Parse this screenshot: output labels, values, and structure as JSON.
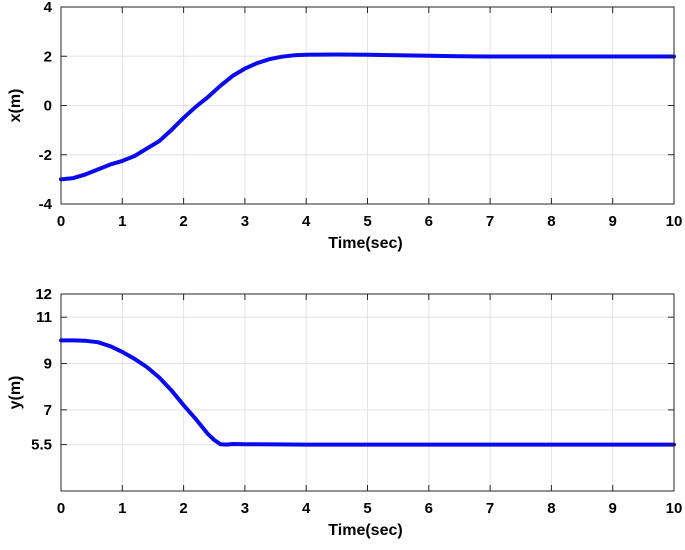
{
  "chart_data": [
    {
      "type": "line",
      "xlabel": "Time(sec)",
      "ylabel": "x(m)",
      "xlim": [
        0,
        10
      ],
      "ylim": [
        -4,
        4
      ],
      "xticks": [
        "0",
        "1",
        "2",
        "3",
        "4",
        "5",
        "6",
        "7",
        "8",
        "9",
        "10"
      ],
      "xtick_values": [
        0,
        1,
        2,
        3,
        4,
        5,
        6,
        7,
        8,
        9,
        10
      ],
      "yticks": [
        "-4",
        "-2",
        "0",
        "2",
        "4"
      ],
      "ytick_values": [
        -4,
        -2,
        0,
        2,
        4
      ],
      "grid": true,
      "series": [
        {
          "color": "#0a0af0",
          "x": [
            0,
            0.2,
            0.4,
            0.6,
            0.8,
            1.0,
            1.2,
            1.4,
            1.6,
            1.8,
            2.0,
            2.2,
            2.4,
            2.6,
            2.8,
            3.0,
            3.2,
            3.4,
            3.6,
            3.8,
            4.0,
            4.5,
            5.0,
            5.5,
            6.0,
            6.5,
            7.0,
            8.0,
            9.0,
            10.0
          ],
          "y": [
            -3.0,
            -2.95,
            -2.8,
            -2.6,
            -2.4,
            -2.25,
            -2.05,
            -1.75,
            -1.45,
            -1.0,
            -0.5,
            -0.05,
            0.35,
            0.8,
            1.2,
            1.5,
            1.72,
            1.88,
            1.98,
            2.04,
            2.06,
            2.07,
            2.06,
            2.04,
            2.02,
            2.0,
            1.99,
            1.99,
            1.99,
            1.99
          ]
        }
      ]
    },
    {
      "type": "line",
      "xlabel": "Time(sec)",
      "ylabel": "y(m)",
      "xlim": [
        0,
        10
      ],
      "ylim": [
        3.5,
        12
      ],
      "xticks": [
        "0",
        "1",
        "2",
        "3",
        "4",
        "5",
        "6",
        "7",
        "8",
        "9",
        "10"
      ],
      "xtick_values": [
        0,
        1,
        2,
        3,
        4,
        5,
        6,
        7,
        8,
        9,
        10
      ],
      "yticks": [
        "5.5",
        "7",
        "9",
        "11",
        "12"
      ],
      "ytick_values": [
        5.5,
        7,
        9,
        11,
        12
      ],
      "grid": true,
      "series": [
        {
          "color": "#0a0af0",
          "x": [
            0,
            0.2,
            0.4,
            0.6,
            0.8,
            1.0,
            1.2,
            1.4,
            1.6,
            1.8,
            2.0,
            2.2,
            2.4,
            2.5,
            2.6,
            2.7,
            2.8,
            3.0,
            3.5,
            4.0,
            5.0,
            6.0,
            7.0,
            8.0,
            9.0,
            10.0
          ],
          "y": [
            10.0,
            10.0,
            9.98,
            9.92,
            9.75,
            9.5,
            9.2,
            8.85,
            8.4,
            7.85,
            7.2,
            6.6,
            5.95,
            5.7,
            5.52,
            5.5,
            5.53,
            5.52,
            5.51,
            5.5,
            5.5,
            5.5,
            5.5,
            5.5,
            5.5,
            5.5
          ]
        }
      ]
    }
  ]
}
